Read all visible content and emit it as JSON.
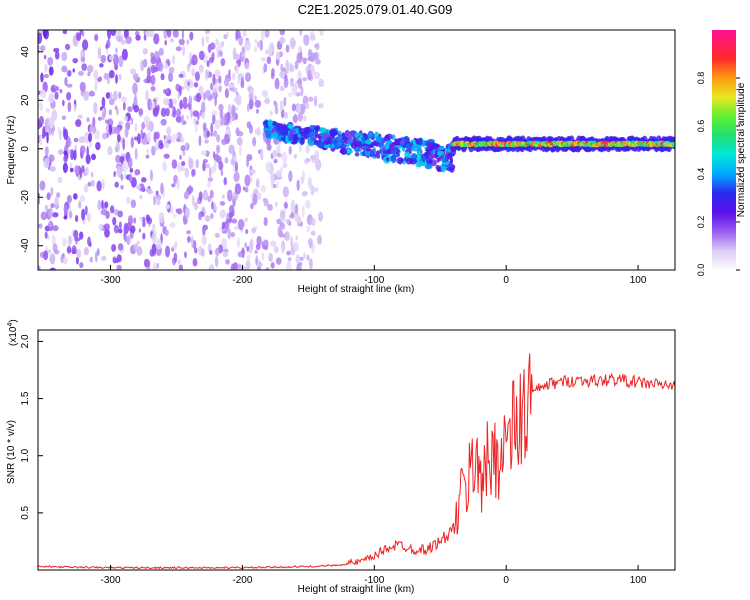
{
  "page_title": "C2E1.2025.079.01.40.G09",
  "chart_data": [
    {
      "type": "heatmap",
      "xlabel": "Height of straight line (km)",
      "ylabel": "Frequency (Hz)",
      "xlim": [
        -355,
        128
      ],
      "ylim": [
        -50,
        49
      ],
      "xticks": [
        -300,
        -200,
        -100,
        0,
        100
      ],
      "yticks": [
        -40,
        -20,
        0,
        20,
        40
      ],
      "grid": false,
      "colorbar": {
        "label": "Normalized spectral amplitude",
        "range": [
          0,
          1
        ],
        "ticks": [
          0.0,
          0.2,
          0.4,
          0.6,
          0.8
        ],
        "colormap": [
          "#ffffff",
          "#dccbf6",
          "#9a5cf0",
          "#5a10e8",
          "#2a2af0",
          "#00a8ff",
          "#00e8d8",
          "#20e070",
          "#60f030",
          "#e8e820",
          "#ff9a10",
          "#ff2a2a",
          "#ff1090"
        ]
      },
      "features": [
        {
          "region": "diffuse noise",
          "x_range": [
            -355,
            -140
          ],
          "freq_range": [
            -50,
            49
          ],
          "amplitude": [
            0.05,
            0.25
          ]
        },
        {
          "region": "descending band",
          "x_range": [
            -182,
            -40
          ],
          "freq_start": 8,
          "freq_end": -4,
          "amplitude": [
            0.2,
            0.5
          ]
        },
        {
          "region": "steady tone",
          "x_range": [
            -40,
            128
          ],
          "freq": 2,
          "amplitude": [
            0.5,
            0.95
          ]
        }
      ]
    },
    {
      "type": "line",
      "xlabel": "Height of straight line (km)",
      "ylabel": "SNR (10 * v/v)",
      "y_multiplier": "(x10",
      "y_exponent": "4",
      "y_multiplier_close": ")",
      "xlim": [
        -355,
        128
      ],
      "ylim": [
        0,
        2.1
      ],
      "xticks": [
        -300,
        -200,
        -100,
        0,
        100
      ],
      "yticks": [
        0.5,
        1.0,
        1.5,
        2.0
      ],
      "ytick_labels": [
        "0.5",
        "1.0",
        "1.5",
        "2.0"
      ],
      "grid": false,
      "color": "#ee2222",
      "x": [
        -355,
        -300,
        -250,
        -200,
        -150,
        -130,
        -110,
        -100,
        -90,
        -80,
        -70,
        -60,
        -50,
        -45,
        -40,
        -35,
        -30,
        -25,
        -22,
        -20,
        -18,
        -15,
        -10,
        -5,
        0,
        5,
        10,
        15,
        20,
        30,
        40,
        50,
        60,
        70,
        80,
        90,
        100,
        110,
        120,
        128
      ],
      "y": [
        0.03,
        0.02,
        0.02,
        0.02,
        0.03,
        0.04,
        0.07,
        0.12,
        0.2,
        0.22,
        0.18,
        0.18,
        0.25,
        0.3,
        0.35,
        0.6,
        0.75,
        0.9,
        1.1,
        0.95,
        0.7,
        0.9,
        1.0,
        1.05,
        1.1,
        1.2,
        1.3,
        1.4,
        1.55,
        1.62,
        1.64,
        1.66,
        1.66,
        1.65,
        1.67,
        1.66,
        1.64,
        1.63,
        1.62,
        1.6
      ]
    }
  ]
}
